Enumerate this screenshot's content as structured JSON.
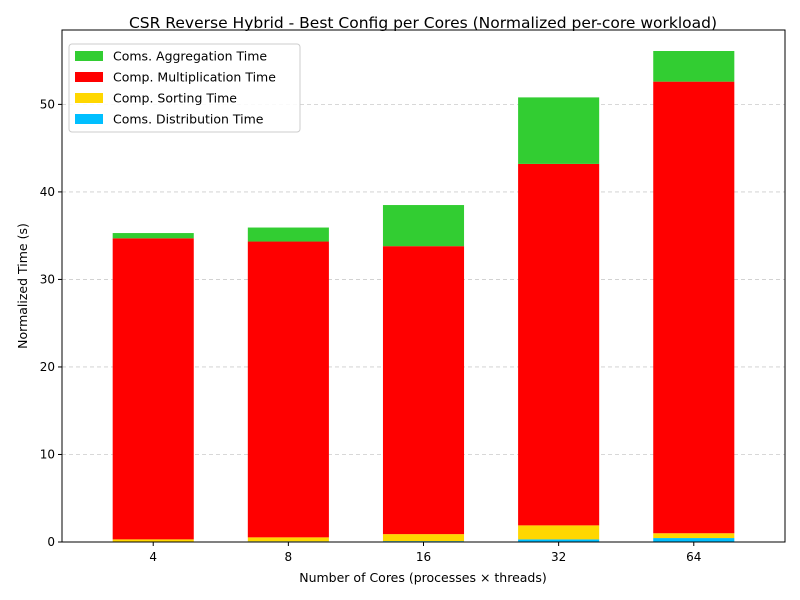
{
  "chart_data": {
    "type": "bar",
    "stacked": true,
    "title": "CSR Reverse Hybrid - Best Config per Cores (Normalized per-core workload)",
    "xlabel": "Number of Cores (processes × threads)",
    "ylabel": "Normalized Time (s)",
    "categories": [
      "4",
      "8",
      "16",
      "32",
      "64"
    ],
    "ylim": [
      0,
      58.5
    ],
    "yticks": [
      0,
      10,
      20,
      30,
      40,
      50
    ],
    "grid": "y-dashed",
    "legend_position": "top-left",
    "series": [
      {
        "name": "Coms. Distribution Time",
        "color": "#00bfff",
        "values": [
          0.05,
          0.08,
          0.1,
          0.3,
          0.45
        ]
      },
      {
        "name": "Comp. Sorting Time",
        "color": "#ffd700",
        "values": [
          0.25,
          0.45,
          0.8,
          1.6,
          0.55
        ]
      },
      {
        "name": "Comp. Multiplication Time",
        "color": "#ff0000",
        "values": [
          34.4,
          33.8,
          32.9,
          41.3,
          51.6
        ]
      },
      {
        "name": "Coms. Aggregation Time",
        "color": "#32cd32",
        "values": [
          0.6,
          1.6,
          4.7,
          7.6,
          3.5
        ]
      }
    ]
  }
}
